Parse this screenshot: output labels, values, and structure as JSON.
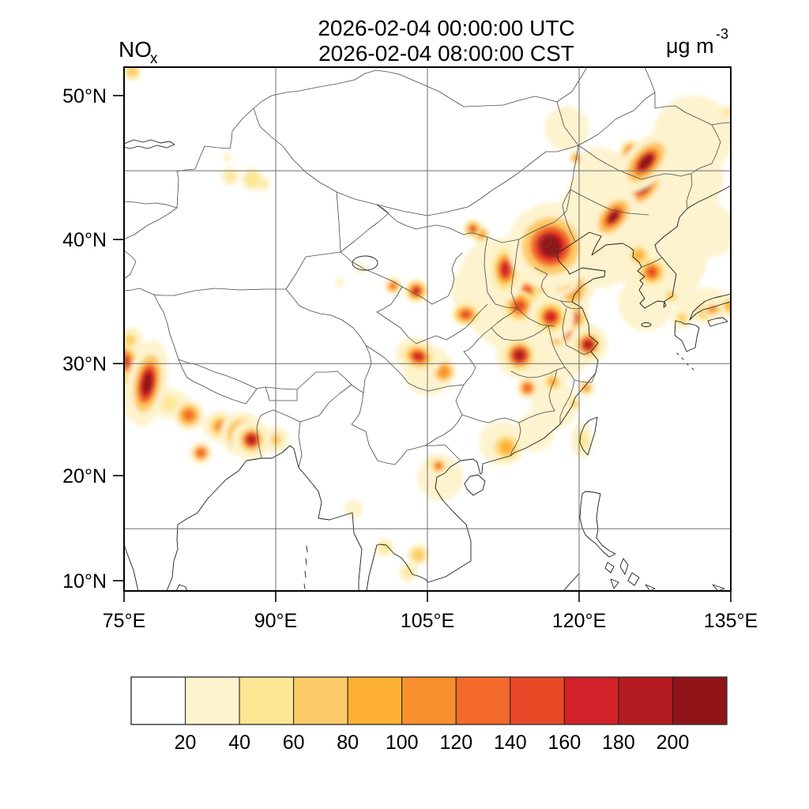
{
  "header": {
    "species": "NO",
    "species_sub": "x",
    "title_line1": "2026-02-04 00:00:00 UTC",
    "title_line2": "2026-02-04 08:00:00 CST",
    "units": "μg m",
    "units_exp": "-3"
  },
  "chart_data": {
    "type": "heatmap",
    "subtype": "filled-contour-map",
    "variable": "NOx",
    "units": "μg m-3",
    "title_line1": "2026-02-04 00:00:00 UTC",
    "title_line2": "2026-02-04 08:00:00 CST",
    "domain": {
      "lon": [
        75,
        135
      ],
      "lat": [
        9,
        52
      ]
    },
    "grid": true,
    "levels": [
      20,
      40,
      60,
      80,
      100,
      120,
      140,
      160,
      180,
      200
    ],
    "palette": [
      "#FFFFFF",
      "#FDF3CE",
      "#FCE794",
      "#FDCB67",
      "#FEB134",
      "#F9902E",
      "#F46A2A",
      "#E84A28",
      "#D22128",
      "#B31B20",
      "#911419"
    ],
    "x_axis": {
      "ticks": [
        {
          "lon": 75,
          "label": "75°E"
        },
        {
          "lon": 90,
          "label": "90°E"
        },
        {
          "lon": 105,
          "label": "105°E"
        },
        {
          "lon": 120,
          "label": "120°E"
        },
        {
          "lon": 135,
          "label": "135°E"
        }
      ],
      "gridlines": [
        90,
        105,
        120
      ]
    },
    "y_axis": {
      "ticks": [
        {
          "lat": 50,
          "label": "50°N"
        },
        {
          "lat": 40,
          "label": "40°N"
        },
        {
          "lat": 30,
          "label": "30°N"
        },
        {
          "lat": 20,
          "label": "20°N"
        },
        {
          "lat": 10,
          "label": "10°N"
        }
      ],
      "gridlines": [
        45,
        30,
        15
      ]
    },
    "hotspots": [
      {
        "name": "haze-ne-plain",
        "lon": 125.0,
        "lat": 43.0,
        "value": 32,
        "r": 55,
        "a": 0.75
      },
      {
        "name": "haze-liaoning",
        "lon": 121.9,
        "lat": 40.3,
        "value": 30,
        "r": 45
      },
      {
        "name": "haze-korea-bay",
        "lon": 128.1,
        "lat": 38.7,
        "value": 30,
        "r": 40
      },
      {
        "name": "haze-yellow-sea",
        "lon": 126.6,
        "lat": 35.0,
        "value": 25,
        "r": 35
      },
      {
        "name": "haze-n-heilongjiang",
        "lon": 129.7,
        "lat": 44.4,
        "value": 28,
        "r": 40
      },
      {
        "name": "haze-sea-of-japan",
        "lon": 132.8,
        "lat": 40.7,
        "value": 25,
        "r": 35
      },
      {
        "name": "haze-amur",
        "lon": 131.3,
        "lat": 47.4,
        "value": 28,
        "r": 35
      },
      {
        "name": "haze-songnen",
        "lon": 121.9,
        "lat": 45.0,
        "value": 25,
        "r": 30
      },
      {
        "name": "haze-hulunbuir",
        "lon": 118.8,
        "lat": 47.9,
        "value": 25,
        "r": 28
      },
      {
        "name": "haze-north-china-plain",
        "lon": 114.8,
        "lat": 35.5,
        "value": 38,
        "r": 40,
        "a": 0.9
      },
      {
        "name": "haze-shanxi",
        "lon": 111.7,
        "lat": 37.4,
        "value": 30,
        "r": 30
      },
      {
        "name": "haze-jianghuai",
        "lon": 117.6,
        "lat": 31.9,
        "value": 30,
        "r": 35
      },
      {
        "name": "haze-hubei",
        "lon": 116.6,
        "lat": 29.1,
        "value": 25,
        "r": 30
      },
      {
        "name": "haze-shaanxi",
        "lon": 110.2,
        "lat": 36.0,
        "value": 28,
        "r": 25
      },
      {
        "name": "haze-sichuan-basin",
        "lon": 105.1,
        "lat": 29.4,
        "value": 32,
        "r": 22
      },
      {
        "name": "haze-hunan-jiangxi",
        "lon": 117.6,
        "lat": 26.4,
        "value": 22,
        "r": 30
      },
      {
        "name": "haze-lingnan",
        "lon": 115.6,
        "lat": 24.0,
        "value": 22,
        "r": 25
      },
      {
        "name": "haze-korea-south",
        "lon": 127.3,
        "lat": 35.5,
        "value": 25,
        "r": 25
      },
      {
        "name": "haze-honshu",
        "lon": 132.4,
        "lat": 34.9,
        "value": 30,
        "r": 25,
        "a": 0.6
      },
      {
        "name": "haze-tonkin",
        "lon": 106.3,
        "lat": 19.8,
        "value": 30,
        "r": 20
      },
      {
        "name": "haze-indo-gangetic-west",
        "lon": 79.3,
        "lat": 26.6,
        "value": 45,
        "r": 16,
        "a": 0.6,
        "rot": 15
      },
      {
        "name": "haze-indo-gangetic-east",
        "lon": 85.2,
        "lat": 24.3,
        "value": 45,
        "r": 16,
        "a": 0.6,
        "rot": 10
      },
      {
        "name": "haze-nw-india",
        "lon": 75.4,
        "lat": 28.6,
        "value": 60,
        "r": 12
      },
      {
        "name": "haze-pearl-river",
        "lon": 112.3,
        "lat": 23.0,
        "value": 50,
        "r": 14
      },
      {
        "name": "haze-cambodia",
        "lon": 104.1,
        "lat": 12.5,
        "value": 65,
        "r": 7
      },
      {
        "name": "haze-tonle-sap",
        "lon": 103.1,
        "lat": 10.8,
        "value": 50,
        "r": 6
      },
      {
        "name": "haze-bangkok",
        "lon": 100.8,
        "lat": 13.2,
        "value": 50,
        "r": 6
      },
      {
        "name": "haze-qaidam",
        "lon": 98.4,
        "lat": 37.8,
        "value": 35,
        "r": 5
      },
      {
        "name": "haze-qaidam-west",
        "lon": 96.3,
        "lat": 36.7,
        "value": 30,
        "r": 4
      },
      {
        "name": "haze-taiwan-west",
        "lon": 120.3,
        "lat": 23.2,
        "value": 45,
        "r": 7,
        "a": 1.6
      },
      {
        "name": "haze-almaty-corner",
        "lon": 75.8,
        "lat": 51.5,
        "value": 60,
        "r": 6
      },
      {
        "name": "haze-top-right",
        "lon": 134.6,
        "lat": 48.9,
        "value": 50,
        "r": 5
      },
      {
        "name": "haze-urumqi-band",
        "lon": 85.5,
        "lat": 44.6,
        "value": 40,
        "r": 6
      },
      {
        "name": "haze-myanmar",
        "lon": 97.7,
        "lat": 16.9,
        "value": 25,
        "r": 12
      },
      {
        "name": "beijing-tianjin",
        "lon": 117.2,
        "lat": 39.5,
        "value": 230,
        "r": 13
      },
      {
        "name": "beijing-nw",
        "lon": 116.6,
        "lat": 40.1,
        "value": 180,
        "r": 8
      },
      {
        "name": "tangshan",
        "lon": 118.1,
        "lat": 39.4,
        "value": 150,
        "r": 7
      },
      {
        "name": "harbin",
        "lon": 126.6,
        "lat": 45.6,
        "value": 215,
        "r": 11,
        "a": 0.55,
        "rot": -48
      },
      {
        "name": "daqing",
        "lon": 125.2,
        "lat": 46.3,
        "value": 150,
        "r": 5
      },
      {
        "name": "jiamusi",
        "lon": 127.0,
        "lat": 46.3,
        "value": 150,
        "r": 5
      },
      {
        "name": "changchun",
        "lon": 126.4,
        "lat": 43.9,
        "value": 205,
        "r": 9,
        "a": 0.6,
        "rot": -50
      },
      {
        "name": "songyuan",
        "lon": 125.2,
        "lat": 43.4,
        "value": 160,
        "r": 6
      },
      {
        "name": "siping",
        "lon": 124.1,
        "lat": 42.5,
        "value": 190,
        "r": 8,
        "a": 0.6,
        "rot": -50
      },
      {
        "name": "tieling",
        "lon": 123.4,
        "lat": 41.7,
        "value": 205,
        "r": 9,
        "a": 0.6,
        "rot": -50
      },
      {
        "name": "shenyang",
        "lon": 122.7,
        "lat": 41.0,
        "value": 185,
        "r": 8,
        "a": 0.65,
        "rot": -50
      },
      {
        "name": "liaoyang",
        "lon": 122.1,
        "lat": 40.4,
        "value": 150,
        "r": 7,
        "a": 0.7,
        "rot": -50
      },
      {
        "name": "yingkou",
        "lon": 121.6,
        "lat": 39.8,
        "value": 120,
        "r": 6
      },
      {
        "name": "ne-inner-mongolia-dot",
        "lon": 119.7,
        "lat": 45.9,
        "value": 110,
        "r": 3
      },
      {
        "name": "taiyuan",
        "lon": 112.7,
        "lat": 37.7,
        "value": 175,
        "r": 6,
        "a": 1.6
      },
      {
        "name": "shijiazhuang",
        "lon": 115.7,
        "lat": 38.3,
        "value": 150,
        "r": 7
      },
      {
        "name": "ncp-band",
        "lon": 115.2,
        "lat": 37.1,
        "value": 120,
        "r": 14,
        "a": 0.8
      },
      {
        "name": "jinan",
        "lon": 118.2,
        "lat": 37.0,
        "value": 130,
        "r": 8
      },
      {
        "name": "shandong-mid",
        "lon": 119.1,
        "lat": 36.2,
        "value": 110,
        "r": 10
      },
      {
        "name": "qingdao",
        "lon": 120.2,
        "lat": 36.2,
        "value": 100,
        "r": 6
      },
      {
        "name": "handan",
        "lon": 114.8,
        "lat": 36.0,
        "value": 140,
        "r": 6
      },
      {
        "name": "zhengzhou",
        "lon": 114.1,
        "lat": 34.8,
        "value": 150,
        "r": 7
      },
      {
        "name": "xuzhou",
        "lon": 117.2,
        "lat": 33.9,
        "value": 170,
        "r": 7
      },
      {
        "name": "huaian",
        "lon": 119.5,
        "lat": 33.8,
        "value": 140,
        "r": 6
      },
      {
        "name": "hefei",
        "lon": 118.0,
        "lat": 32.3,
        "value": 110,
        "r": 6
      },
      {
        "name": "nanjing",
        "lon": 119.0,
        "lat": 32.6,
        "value": 130,
        "r": 6
      },
      {
        "name": "shanghai",
        "lon": 120.9,
        "lat": 31.6,
        "value": 195,
        "r": 6
      },
      {
        "name": "wuhan",
        "lon": 114.1,
        "lat": 30.7,
        "value": 190,
        "r": 7
      },
      {
        "name": "changsha",
        "lon": 114.9,
        "lat": 27.9,
        "value": 130,
        "r": 5
      },
      {
        "name": "nanchang",
        "lon": 117.4,
        "lat": 28.4,
        "value": 90,
        "r": 5
      },
      {
        "name": "wenzhou",
        "lon": 120.7,
        "lat": 27.9,
        "value": 100,
        "r": 4
      },
      {
        "name": "fuzhou",
        "lon": 119.5,
        "lat": 26.5,
        "value": 60,
        "r": 4
      },
      {
        "name": "chengdu",
        "lon": 104.1,
        "lat": 30.6,
        "value": 175,
        "r": 7,
        "a": 0.8,
        "rot": 20
      },
      {
        "name": "chongqing",
        "lon": 106.6,
        "lat": 29.3,
        "value": 110,
        "r": 6
      },
      {
        "name": "xian",
        "lon": 108.8,
        "lat": 34.1,
        "value": 150,
        "r": 6,
        "a": 0.8
      },
      {
        "name": "lanzhou",
        "lon": 103.9,
        "lat": 36.0,
        "value": 160,
        "r": 5
      },
      {
        "name": "xining",
        "lon": 101.6,
        "lat": 36.4,
        "value": 120,
        "r": 4
      },
      {
        "name": "baotou",
        "lon": 109.5,
        "lat": 40.8,
        "value": 140,
        "r": 4
      },
      {
        "name": "hohhot",
        "lon": 110.3,
        "lat": 40.4,
        "value": 110,
        "r": 4
      },
      {
        "name": "urumqi",
        "lon": 87.7,
        "lat": 44.4,
        "value": 55,
        "r": 7
      },
      {
        "name": "urumqi-east",
        "lon": 88.7,
        "lat": 44.1,
        "value": 45,
        "r": 5
      },
      {
        "name": "karamay",
        "lon": 85.2,
        "lat": 45.9,
        "value": 30,
        "r": 4
      },
      {
        "name": "seoul",
        "lon": 127.2,
        "lat": 37.5,
        "value": 150,
        "r": 6
      },
      {
        "name": "pyongyang",
        "lon": 125.9,
        "lat": 38.8,
        "value": 80,
        "r": 6
      },
      {
        "name": "busan",
        "lon": 129.1,
        "lat": 35.6,
        "value": 60,
        "r": 5
      },
      {
        "name": "okayama",
        "lon": 133.2,
        "lat": 34.5,
        "value": 110,
        "r": 5,
        "a": 0.6,
        "rot": -10
      },
      {
        "name": "hiroshima",
        "lon": 132.4,
        "lat": 34.3,
        "value": 80,
        "r": 5
      },
      {
        "name": "kitakyushu",
        "lon": 130.2,
        "lat": 33.8,
        "value": 70,
        "r": 5
      },
      {
        "name": "osaka-edge",
        "lon": 134.9,
        "lat": 34.8,
        "value": 80,
        "r": 5
      },
      {
        "name": "delhi",
        "lon": 77.3,
        "lat": 28.3,
        "value": 225,
        "r": 6,
        "a": 2.2,
        "rot": 10
      },
      {
        "name": "west-edge-30n",
        "lon": 75.2,
        "lat": 30.2,
        "value": 150,
        "r": 6,
        "a": 1.5,
        "rot": -30
      },
      {
        "name": "west-edge-32n",
        "lon": 75.6,
        "lat": 32.0,
        "value": 70,
        "r": 6
      },
      {
        "name": "punjab",
        "lon": 76.6,
        "lat": 26.9,
        "value": 70,
        "r": 10
      },
      {
        "name": "kanpur",
        "lon": 81.4,
        "lat": 25.5,
        "value": 120,
        "r": 7
      },
      {
        "name": "patna",
        "lon": 84.5,
        "lat": 24.5,
        "value": 100,
        "r": 7
      },
      {
        "name": "kolkata",
        "lon": 87.6,
        "lat": 23.3,
        "value": 185,
        "r": 6
      },
      {
        "name": "kolkata-halo",
        "lon": 86.7,
        "lat": 23.8,
        "value": 110,
        "r": 10
      },
      {
        "name": "raipur",
        "lon": 82.6,
        "lat": 22.1,
        "value": 130,
        "r": 5
      },
      {
        "name": "dhaka",
        "lon": 90.0,
        "lat": 23.3,
        "value": 70,
        "r": 6
      },
      {
        "name": "guangzhou",
        "lon": 112.8,
        "lat": 22.6,
        "value": 95,
        "r": 8
      },
      {
        "name": "tonkin-coast",
        "lon": 106.1,
        "lat": 20.9,
        "value": 120,
        "r": 4
      },
      {
        "name": "hanoi",
        "lon": 105.8,
        "lat": 21.0,
        "value": 80,
        "r": 5
      }
    ]
  },
  "colorbar": {
    "tick_labels": [
      "20",
      "40",
      "60",
      "80",
      "100",
      "120",
      "140",
      "160",
      "180",
      "200"
    ]
  }
}
